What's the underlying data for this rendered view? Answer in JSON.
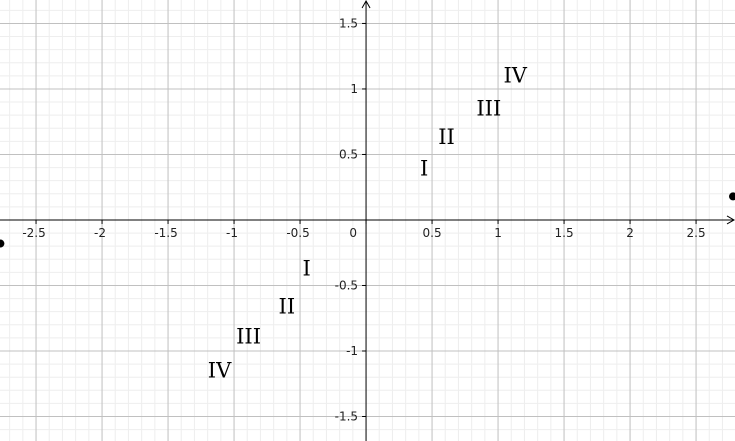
{
  "chart_data": {
    "type": "scatter",
    "xlim": [
      -2.773,
      2.795
    ],
    "ylim": [
      -1.687,
      1.679
    ],
    "xticks": [
      -2.5,
      -2,
      -1.5,
      -1,
      -0.5,
      0,
      0.5,
      1,
      1.5,
      2,
      2.5
    ],
    "yticks": [
      -1.5,
      -1,
      -0.5,
      0.5,
      1,
      1.5
    ],
    "grid": true,
    "points": {
      "x": [
        0.44,
        0.61,
        0.93,
        1.13,
        -0.45,
        -0.6,
        -0.89,
        -1.11
      ],
      "y": [
        0.38,
        0.62,
        0.84,
        1.09,
        -0.38,
        -0.67,
        -0.9,
        -1.16
      ],
      "labels": [
        "I",
        "II",
        "III",
        "IV",
        "I",
        "II",
        "III",
        "IV"
      ],
      "color": "#000000"
    },
    "dots": {
      "x": [
        -2.77,
        2.78
      ],
      "y": [
        -0.18,
        0.18
      ],
      "color": "#000000"
    }
  }
}
